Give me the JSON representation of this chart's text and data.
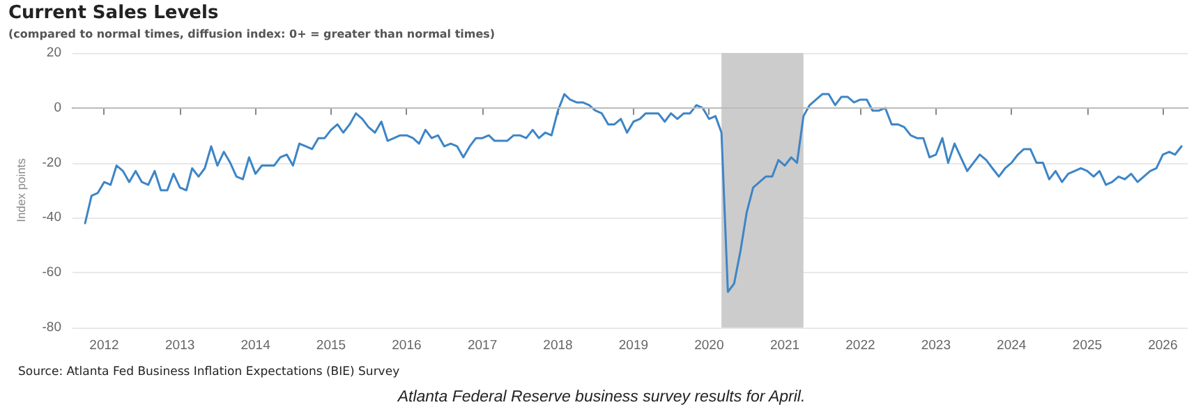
{
  "chart_data": {
    "type": "line",
    "title": "Current Sales Levels",
    "subtitle": "(compared to normal times, diffusion index: 0+ = greater than normal times)",
    "ylabel": "Index points",
    "annotations": [
      "Source: Atlanta Fed Business Inflation Expectations (BIE) Survey",
      "Atlanta Federal Reserve business survey results for April."
    ],
    "x": [
      "2011-10",
      "2011-11",
      "2011-12",
      "2012-01",
      "2012-02",
      "2012-03",
      "2012-04",
      "2012-05",
      "2012-06",
      "2012-07",
      "2012-08",
      "2012-09",
      "2012-10",
      "2012-11",
      "2012-12",
      "2013-01",
      "2013-02",
      "2013-03",
      "2013-04",
      "2013-05",
      "2013-06",
      "2013-07",
      "2013-08",
      "2013-09",
      "2013-10",
      "2013-11",
      "2013-12",
      "2014-01",
      "2014-02",
      "2014-04",
      "2014-05",
      "2014-06",
      "2014-07",
      "2014-08",
      "2014-09",
      "2014-10",
      "2014-11",
      "2014-12",
      "2015-01",
      "2015-02",
      "2015-03",
      "2015-04",
      "2015-05",
      "2015-06",
      "2015-07",
      "2015-08",
      "2015-09",
      "2015-10",
      "2015-11",
      "2015-12",
      "2016-01",
      "2016-02",
      "2016-03",
      "2016-04",
      "2016-05",
      "2016-06",
      "2016-07",
      "2016-08",
      "2016-09",
      "2016-10",
      "2016-11",
      "2016-12",
      "2017-01",
      "2017-02",
      "2017-03",
      "2017-05",
      "2017-06",
      "2017-07",
      "2017-08",
      "2017-09",
      "2017-10",
      "2017-11",
      "2017-12",
      "2018-01",
      "2018-02",
      "2018-03",
      "2018-04",
      "2018-05",
      "2018-06",
      "2018-07",
      "2018-08",
      "2018-09",
      "2018-10",
      "2018-11",
      "2018-12",
      "2019-01",
      "2019-02",
      "2019-03",
      "2019-04",
      "2019-05",
      "2019-06",
      "2019-07",
      "2019-08",
      "2019-09",
      "2019-10",
      "2019-11",
      "2019-12",
      "2020-01",
      "2020-02",
      "2020-03",
      "2020-04",
      "2020-05",
      "2020-06",
      "2020-07",
      "2020-08",
      "2020-09",
      "2020-10",
      "2020-11",
      "2020-12",
      "2021-01",
      "2021-02",
      "2021-03",
      "2021-04",
      "2021-05",
      "2021-06",
      "2021-07",
      "2021-08",
      "2021-09",
      "2021-10",
      "2021-11",
      "2021-12",
      "2022-01",
      "2022-02",
      "2022-03",
      "2022-04",
      "2022-05",
      "2022-06",
      "2022-07",
      "2022-08",
      "2022-09",
      "2022-10",
      "2022-11",
      "2022-12",
      "2023-01",
      "2023-02",
      "2023-03",
      "2023-04",
      "2023-05",
      "2023-06",
      "2023-07",
      "2023-08",
      "2023-09",
      "2023-10",
      "2023-11",
      "2023-12",
      "2024-01",
      "2024-02",
      "2024-03",
      "2024-04",
      "2024-05",
      "2024-06",
      "2024-07",
      "2024-08",
      "2024-09",
      "2024-10",
      "2024-11",
      "2024-12",
      "2025-01",
      "2025-02",
      "2025-03",
      "2025-04",
      "2025-05",
      "2025-06",
      "2025-07",
      "2025-08",
      "2025-09",
      "2025-10",
      "2025-11",
      "2025-12",
      "2026-01",
      "2026-02",
      "2026-03",
      "2026-04"
    ],
    "series": [
      {
        "color": "#3d85c6",
        "values": [
          -42,
          -32,
          -31,
          -27,
          -28,
          -21,
          -23,
          -27,
          -23,
          -27,
          -28,
          -23,
          -30,
          -30,
          -24,
          -29,
          -30,
          -22,
          -25,
          -22,
          -14,
          -21,
          -16,
          -20,
          -25,
          -26,
          -18,
          -24,
          -21,
          -21,
          -18,
          -17,
          -21,
          -13,
          -14,
          -15,
          -11,
          -11,
          -8,
          -6,
          -9,
          -6,
          -2,
          -4,
          -7,
          -9,
          -5,
          -12,
          -11,
          -10,
          -10,
          -11,
          -13,
          -8,
          -11,
          -10,
          -14,
          -13,
          -14,
          -18,
          -14,
          -11,
          -11,
          -10,
          -12,
          -12,
          -10,
          -10,
          -11,
          -8,
          -11,
          -9,
          -10,
          -1,
          5,
          3,
          2,
          2,
          1,
          -1,
          -2,
          -6,
          -6,
          -4,
          -9,
          -5,
          -4,
          -2,
          -2,
          -2,
          -5,
          -2,
          -4,
          -2,
          -2,
          1,
          0,
          -4,
          -3,
          -9,
          -67,
          -64,
          -52,
          -38,
          -29,
          -27,
          -25,
          -25,
          -19,
          -21,
          -18,
          -20,
          -3,
          1,
          3,
          5,
          5,
          1,
          4,
          4,
          2,
          3,
          3,
          -1,
          -1,
          0,
          -6,
          -6,
          -7,
          -10,
          -11,
          -11,
          -18,
          -17,
          -11,
          -20,
          -13,
          -18,
          -23,
          -20,
          -17,
          -19,
          -22,
          -25,
          -22,
          -20,
          -17,
          -15,
          -15,
          -20,
          -20,
          -26,
          -23,
          -27,
          -24,
          -23,
          -22,
          -23,
          -25,
          -23,
          -28,
          -27,
          -25,
          -26,
          -24,
          -27,
          -25,
          -23,
          -22,
          -17,
          -16,
          -17,
          -14
        ]
      }
    ],
    "xlim": [
      "2011-08",
      "2026-05"
    ],
    "xticks": [
      "2012",
      "2013",
      "2014",
      "2015",
      "2016",
      "2017",
      "2018",
      "2019",
      "2020",
      "2021",
      "2022",
      "2023",
      "2024",
      "2025",
      "2026"
    ],
    "ylim": [
      -80,
      20
    ],
    "yticks": [
      -80,
      -60,
      -40,
      -20,
      0,
      20
    ],
    "grid": "y",
    "marker": "none",
    "line_style": "solid",
    "bands": [
      {
        "axis": "x",
        "from": "2020-03",
        "to": "2021-04",
        "color": "#cccccc"
      }
    ],
    "ref_lines": [
      {
        "axis": "y",
        "value": 0,
        "color": "#bbbbbb"
      }
    ]
  }
}
